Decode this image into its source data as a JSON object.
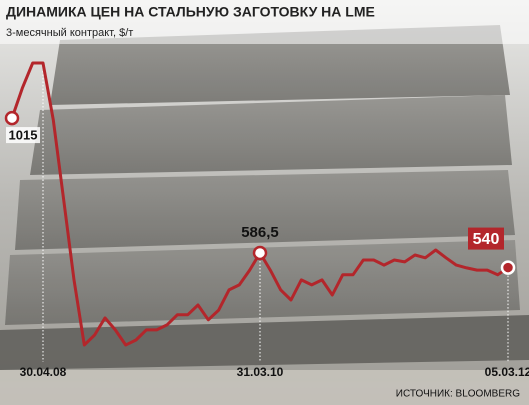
{
  "chart_data": {
    "type": "line",
    "title": "ДИНАМИКА ЦЕН НА СТАЛЬНУЮ ЗАГОТОВКУ НА LME",
    "subtitle": "3-месячный контракт, $/т",
    "source": "ИСТОЧНИК: BLOOMBERG",
    "categories": [
      null,
      null,
      null,
      "30.04.08",
      null,
      null,
      null,
      null,
      null,
      null,
      null,
      null,
      null,
      null,
      null,
      null,
      null,
      null,
      null,
      null,
      null,
      null,
      null,
      null,
      "31.03.10",
      null,
      null,
      null,
      null,
      null,
      null,
      null,
      null,
      null,
      null,
      null,
      null,
      null,
      null,
      null,
      null,
      null,
      null,
      null,
      null,
      null,
      null,
      null,
      "05.03.12"
    ],
    "values": [
      1015,
      1110,
      1190,
      1190,
      1009,
      755,
      501,
      294,
      326,
      380,
      342,
      294,
      310,
      342,
      342,
      358,
      390,
      390,
      421,
      374,
      405,
      469,
      485,
      532,
      586.5,
      532,
      469,
      437,
      501,
      485,
      501,
      453,
      517,
      517,
      564,
      564,
      548,
      564,
      558,
      580,
      571,
      596,
      571,
      548,
      539,
      532,
      532,
      517,
      540
    ],
    "value_labels": [
      "1015",
      null,
      null,
      null,
      null,
      null,
      null,
      null,
      null,
      null,
      null,
      null,
      null,
      null,
      null,
      null,
      null,
      null,
      null,
      null,
      null,
      null,
      null,
      null,
      "586,5",
      null,
      null,
      null,
      null,
      null,
      null,
      null,
      null,
      null,
      null,
      null,
      null,
      null,
      null,
      null,
      null,
      null,
      null,
      null,
      null,
      null,
      null,
      null,
      "540"
    ],
    "color": "#b3262b"
  }
}
